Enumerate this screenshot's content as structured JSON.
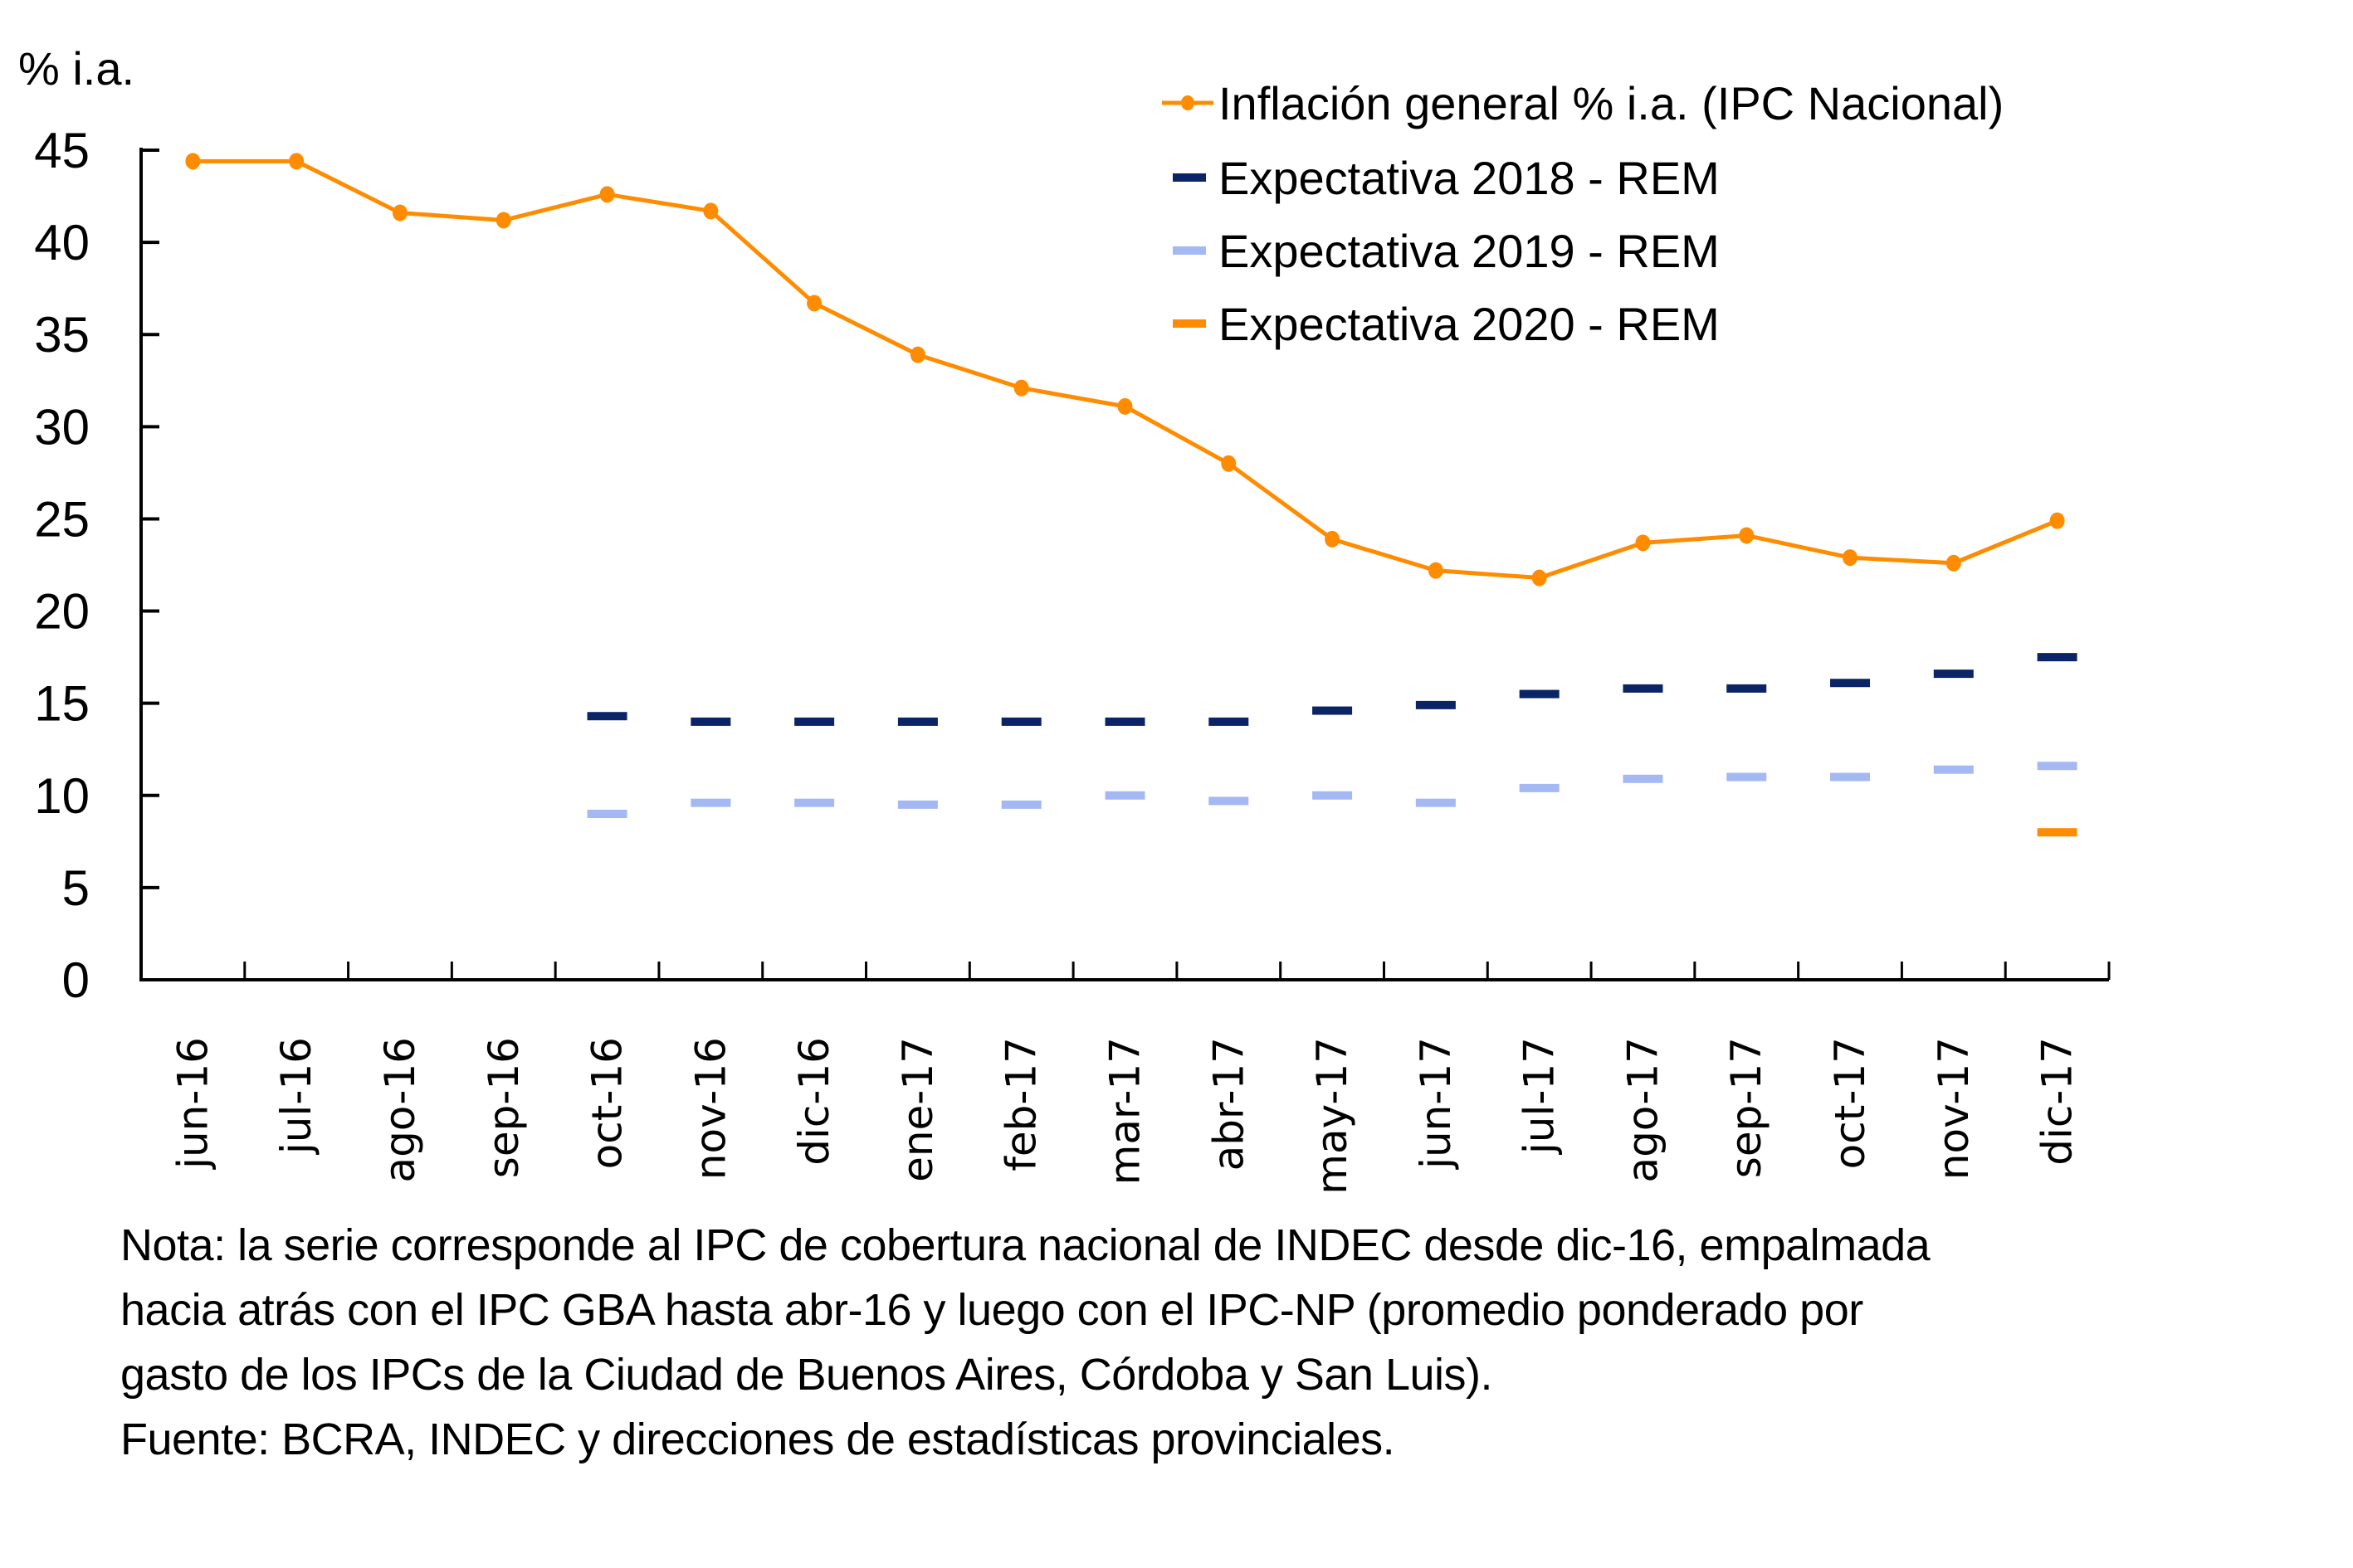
{
  "chart_data": {
    "type": "line",
    "title": "",
    "ylabel": "% i.a.",
    "xlabel": "",
    "ylim": [
      0,
      45
    ],
    "yticks": [
      0,
      5,
      10,
      15,
      20,
      25,
      30,
      35,
      40,
      45
    ],
    "grid": false,
    "legend_position": "top-right",
    "categories": [
      "jun-16",
      "jul-16",
      "ago-16",
      "sep-16",
      "oct-16",
      "nov-16",
      "dic-16",
      "ene-17",
      "feb-17",
      "mar-17",
      "abr-17",
      "may-17",
      "jun-17",
      "jul-17",
      "ago-17",
      "sep-17",
      "oct-17",
      "nov-17",
      "dic-17"
    ],
    "series": [
      {
        "name": "Inflación general % i.a. (IPC Nacional)",
        "style": "line-markers",
        "color": "#FF8C00",
        "values": [
          44.4,
          44.4,
          41.6,
          41.2,
          42.6,
          41.7,
          36.7,
          33.9,
          32.1,
          31.1,
          28.0,
          23.9,
          22.2,
          21.8,
          23.7,
          24.1,
          22.9,
          22.6,
          24.9
        ]
      },
      {
        "name": "Expectativa 2018 - REM",
        "style": "dash-marker",
        "color": "#0B2466",
        "values": [
          null,
          null,
          null,
          null,
          14.3,
          14.0,
          14.0,
          14.0,
          14.0,
          14.0,
          14.0,
          14.6,
          14.9,
          15.5,
          15.8,
          15.8,
          16.1,
          16.6,
          17.5
        ]
      },
      {
        "name": "Expectativa 2019 - REM",
        "style": "dash-marker",
        "color": "#A4B9F3",
        "values": [
          null,
          null,
          null,
          null,
          9.0,
          9.6,
          9.6,
          9.5,
          9.5,
          10.0,
          9.7,
          10.0,
          9.6,
          10.4,
          10.9,
          11.0,
          11.0,
          11.4,
          11.6
        ]
      },
      {
        "name": "Expectativa 2020 - REM",
        "style": "dash-marker",
        "color": "#FF8C00",
        "values": [
          null,
          null,
          null,
          null,
          null,
          null,
          null,
          null,
          null,
          null,
          null,
          null,
          null,
          null,
          null,
          null,
          null,
          null,
          8.0
        ]
      }
    ]
  },
  "footnote": {
    "lines": [
      "Nota: la serie corresponde al IPC de cobertura nacional de INDEC desde dic-16, empalmada",
      "hacia atrás con el IPC GBA hasta abr-16 y luego con el IPC-NP (promedio ponderado por",
      "gasto de los IPCs de la Ciudad de Buenos Aires, Córdoba y San Luis).",
      "Fuente: BCRA, INDEC y direcciones de estadísticas provinciales."
    ]
  }
}
